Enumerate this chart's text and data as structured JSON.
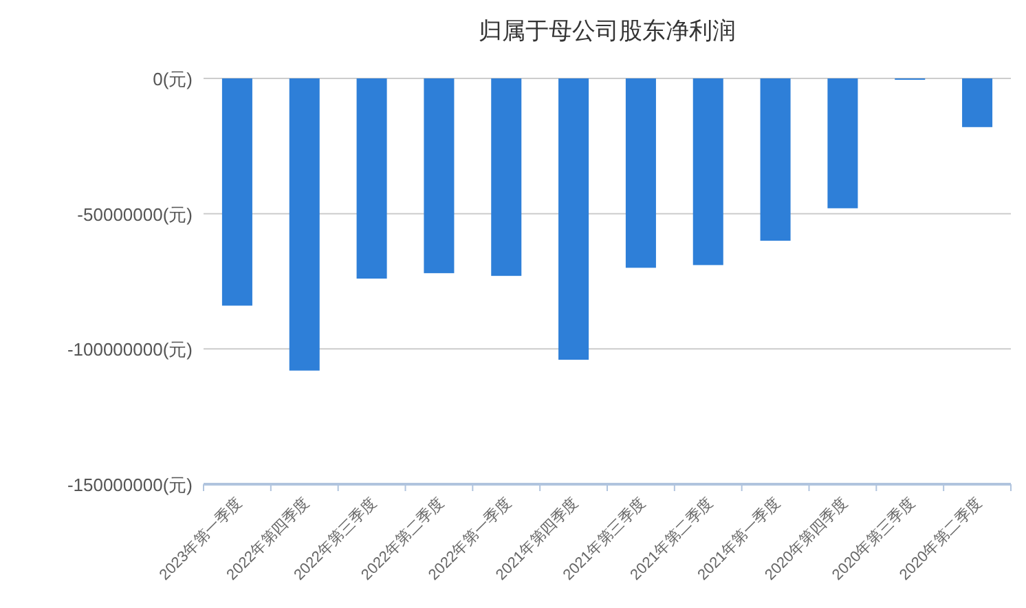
{
  "chart_data": {
    "type": "bar",
    "title": "归属于母公司股东净利润",
    "categories": [
      "2023年第一季度",
      "2022年第四季度",
      "2022年第三季度",
      "2022年第二季度",
      "2022年第一季度",
      "2021年第四季度",
      "2021年第三季度",
      "2021年第二季度",
      "2021年第一季度",
      "2020年第四季度",
      "2020年第三季度",
      "2020年第二季度"
    ],
    "values": [
      -84000000,
      -108000000,
      -74000000,
      -72000000,
      -73000000,
      -104000000,
      -70000000,
      -69000000,
      -60000000,
      -48000000,
      -500000,
      -18000000
    ],
    "color": "#2e7fd8",
    "ylim": [
      -150000000,
      0
    ],
    "yticks": [
      {
        "value": 0,
        "label": "0(元)"
      },
      {
        "value": -50000000,
        "label": "-50000000(元)"
      },
      {
        "value": -100000000,
        "label": "-100000000(元)"
      },
      {
        "value": -150000000,
        "label": "-150000000(元)"
      }
    ],
    "grid": "y"
  }
}
